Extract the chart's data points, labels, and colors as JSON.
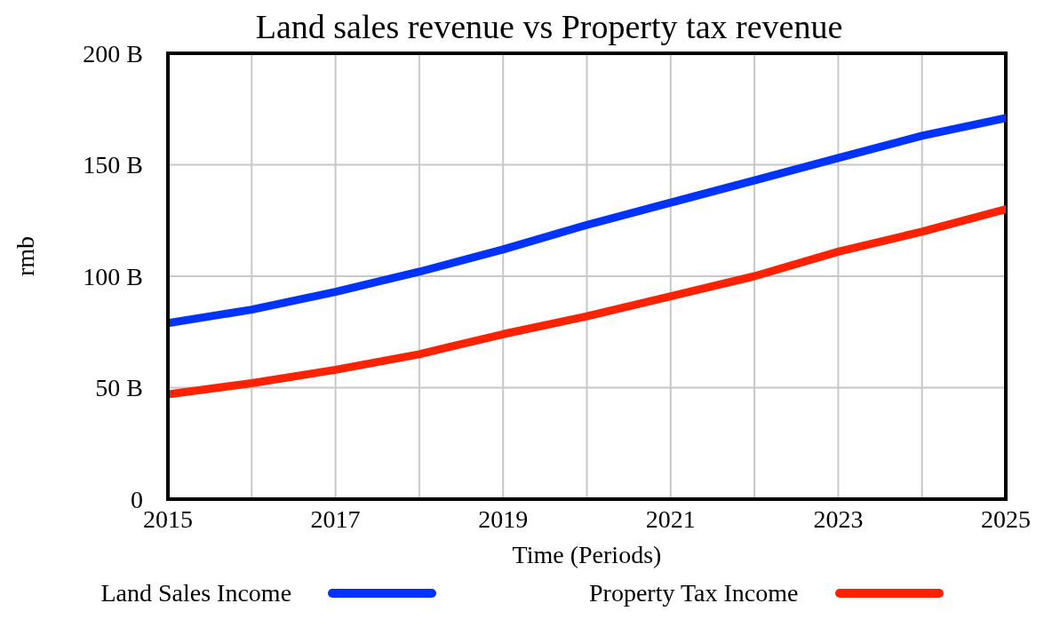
{
  "chart_data": {
    "type": "line",
    "title": "Land sales revenue vs Property tax revenue",
    "xlabel": "Time (Periods)",
    "ylabel": "rmb",
    "x": [
      2015,
      2016,
      2017,
      2018,
      2019,
      2020,
      2021,
      2022,
      2023,
      2024,
      2025
    ],
    "series": [
      {
        "name": "Land Sales Income",
        "color": "#0033ff",
        "values": [
          79,
          85,
          93,
          102,
          112,
          123,
          133,
          143,
          153,
          163,
          171
        ]
      },
      {
        "name": "Property Tax Income",
        "color": "#ff2200",
        "values": [
          47,
          52,
          58,
          65,
          74,
          82,
          91,
          100,
          111,
          120,
          130
        ]
      }
    ],
    "xlim": [
      2015,
      2025
    ],
    "xticks": [
      2015,
      {
        "value": 2016,
        "label": null
      },
      2017,
      {
        "value": 2018,
        "label": null
      },
      2019,
      {
        "value": 2020,
        "label": null
      },
      2021,
      {
        "value": 2022,
        "label": null
      },
      2023,
      {
        "value": 2024,
        "label": null
      },
      2025
    ],
    "ylim": [
      0,
      200
    ],
    "yticks": [
      0,
      {
        "value": 50,
        "label": "50 B"
      },
      {
        "value": 100,
        "label": "100 B"
      },
      {
        "value": 150,
        "label": "150 B"
      },
      {
        "value": 200,
        "label": "200 B"
      }
    ],
    "grid": true,
    "legend": "bottom",
    "marker": "none",
    "line_style": "solid"
  }
}
